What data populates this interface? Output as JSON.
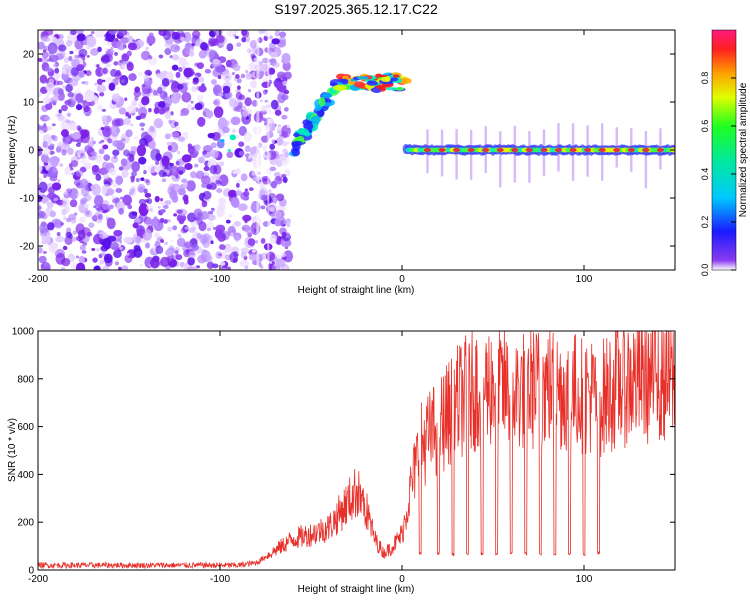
{
  "title": "S197.2025.365.12.17.C22",
  "colors": {
    "line": "#e8302a",
    "frame": "#000000",
    "spectral_low": "#8a3cf0",
    "spectral_high": "#ff1a1a"
  },
  "chart_data": [
    {
      "type": "heatmap",
      "name": "spectrogram",
      "xlabel": "Height of straight line (km)",
      "ylabel": "Frequency (Hz)",
      "xlim": [
        -200,
        150
      ],
      "ylim": [
        -25,
        25
      ],
      "x_ticks": [
        -200,
        -100,
        0,
        100
      ],
      "x_tick_labels": [
        "-200",
        "-100",
        "0",
        "100"
      ],
      "y_ticks": [
        20,
        10,
        0,
        -10,
        -20
      ],
      "y_tick_labels": [
        "20",
        "10",
        "0",
        "-10",
        "-20"
      ],
      "colorbar": {
        "label": "Normalized spectral amplitude",
        "range": [
          0,
          1
        ],
        "ticks": [
          0.0,
          0.2,
          0.4,
          0.6,
          0.8
        ],
        "tick_labels": [
          "0.0",
          "0.2",
          "0.4",
          "0.6",
          "0.8"
        ]
      },
      "features": [
        {
          "label": "broadband noise",
          "x_range": [
            -200,
            -62
          ],
          "freq_range": [
            -25,
            25
          ]
        },
        {
          "label": "rising band",
          "x_range": [
            -60,
            -35
          ],
          "freq_start": 0,
          "freq_end": 14
        },
        {
          "label": "upper band",
          "x_range": [
            -35,
            2
          ],
          "freq": 14
        },
        {
          "label": "carrier line",
          "x_range": [
            2,
            150
          ],
          "freq": 0
        }
      ]
    },
    {
      "type": "line",
      "name": "snr",
      "xlabel": "Height of straight line (km)",
      "ylabel": "SNR (10 * v/v)",
      "xlim": [
        -200,
        150
      ],
      "ylim": [
        0,
        1000
      ],
      "x_ticks": [
        -200,
        -100,
        0,
        100
      ],
      "x_tick_labels": [
        "-200",
        "-100",
        "0",
        "100"
      ],
      "y_ticks": [
        0,
        200,
        400,
        600,
        800,
        1000
      ],
      "y_tick_labels": [
        "0",
        "200",
        "400",
        "600",
        "800",
        "1000"
      ],
      "series": [
        {
          "name": "SNR",
          "x": [
            -200,
            -90,
            -80,
            -70,
            -60,
            -50,
            -40,
            -30,
            -25,
            -20,
            -15,
            -10,
            -5,
            0,
            5,
            10,
            20,
            30,
            40,
            50,
            60,
            70,
            80,
            90,
            100,
            110,
            120,
            130,
            140,
            150
          ],
          "values": [
            20,
            20,
            30,
            80,
            130,
            150,
            180,
            280,
            330,
            260,
            130,
            70,
            100,
            150,
            350,
            520,
            600,
            700,
            760,
            780,
            740,
            760,
            770,
            750,
            740,
            720,
            780,
            800,
            800,
            790
          ]
        }
      ],
      "dropouts_x": [
        10,
        20,
        28,
        36,
        44,
        52,
        60,
        68,
        76,
        84,
        92,
        100,
        108
      ],
      "dropout_value": 60
    }
  ]
}
